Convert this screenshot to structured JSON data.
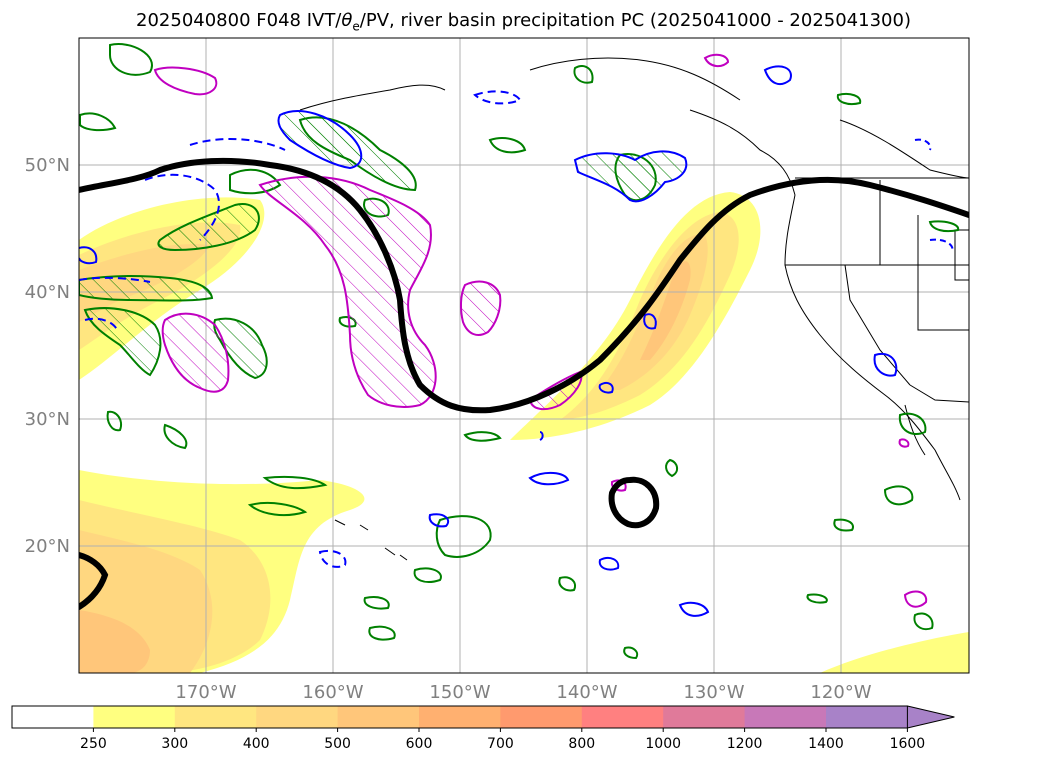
{
  "title": {
    "prefix": "2025040800 F048 IVT/",
    "theta": "θ",
    "theta_sub": "e",
    "suffix": "/PV, river basin precipitation PC (2025041000 - 2025041300)"
  },
  "map": {
    "projection": "PlateCarree",
    "extent": {
      "lon": [
        -180,
        -110
      ],
      "lat": [
        10,
        60
      ]
    },
    "lat_ticks": [
      "20°N",
      "30°N",
      "40°N",
      "50°N"
    ],
    "lon_ticks": [
      "170°W",
      "160°W",
      "150°W",
      "140°W",
      "130°W",
      "120°W"
    ],
    "grid": true,
    "fields": {
      "ivt_shading": "IVT (kg m-1 s-1)",
      "theta_e": "green contours",
      "pv": "blue contours (dashed negative)",
      "precip_pc": "magenta hatched contours",
      "jet_axis": "thick black contour"
    }
  },
  "colorbar": {
    "levels": [
      "250",
      "300",
      "400",
      "500",
      "600",
      "700",
      "800",
      "1000",
      "1200",
      "1400",
      "1600"
    ],
    "colors": [
      "#ffffff",
      "#ffff80",
      "#ffe680",
      "#ffd780",
      "#ffc67a",
      "#ffb070",
      "#ff9a6e",
      "#ff8080",
      "#e07a9a",
      "#c878b8",
      "#a882c8"
    ],
    "extend": "max"
  },
  "colors": {
    "green": "#008000",
    "blue": "#0000ff",
    "magenta": "#c000c0",
    "black": "#000000",
    "grid": "#b0b0b0"
  }
}
